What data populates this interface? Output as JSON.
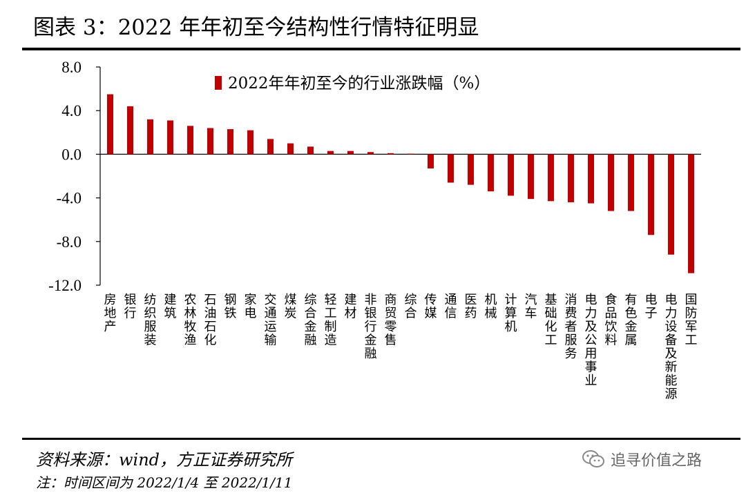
{
  "figure": {
    "title": "图表 3：2022 年年初至今结构性行情特征明显",
    "source": "资料来源：wind，方正证券研究所",
    "note": "注：时间区间为 2022/1/4 至 2022/1/11"
  },
  "watermark": {
    "text": "追寻价值之路",
    "icon": "wechat-icon"
  },
  "colors": {
    "bar": "#C00000",
    "axis": "#000000",
    "text": "#000000"
  },
  "chart_data": {
    "type": "bar",
    "title": "",
    "xlabel": "",
    "ylabel": "",
    "ylim": [
      -12.0,
      8.0
    ],
    "yticks": [
      "8.0",
      "4.0",
      "0.0",
      "-4.0",
      "-8.0",
      "-12.0"
    ],
    "grid": false,
    "legend_position": "top-center",
    "categories": [
      "房地产",
      "银行",
      "纺织服装",
      "建筑",
      "农林牧渔",
      "石油石化",
      "钢铁",
      "家电",
      "交通运输",
      "煤炭",
      "综合金融",
      "轻工制造",
      "建材",
      "非银行金融",
      "商贸零售",
      "综合",
      "传媒",
      "通信",
      "医药",
      "机械",
      "计算机",
      "汽车",
      "基础化工",
      "消费者服务",
      "电力及公用事业",
      "食品饮料",
      "有色金属",
      "电子",
      "电力设备及新能源",
      "国防军工"
    ],
    "series": [
      {
        "name": "2022年年初至今的行业涨跌幅（%）",
        "values": [
          5.5,
          4.4,
          3.2,
          3.1,
          2.6,
          2.4,
          2.3,
          2.2,
          1.4,
          1.0,
          0.7,
          0.3,
          0.3,
          0.2,
          0.1,
          0.05,
          -1.3,
          -2.6,
          -2.8,
          -3.4,
          -3.8,
          -4.1,
          -4.3,
          -4.4,
          -4.5,
          -5.2,
          -5.2,
          -7.4,
          -9.2,
          -10.9
        ]
      }
    ]
  }
}
